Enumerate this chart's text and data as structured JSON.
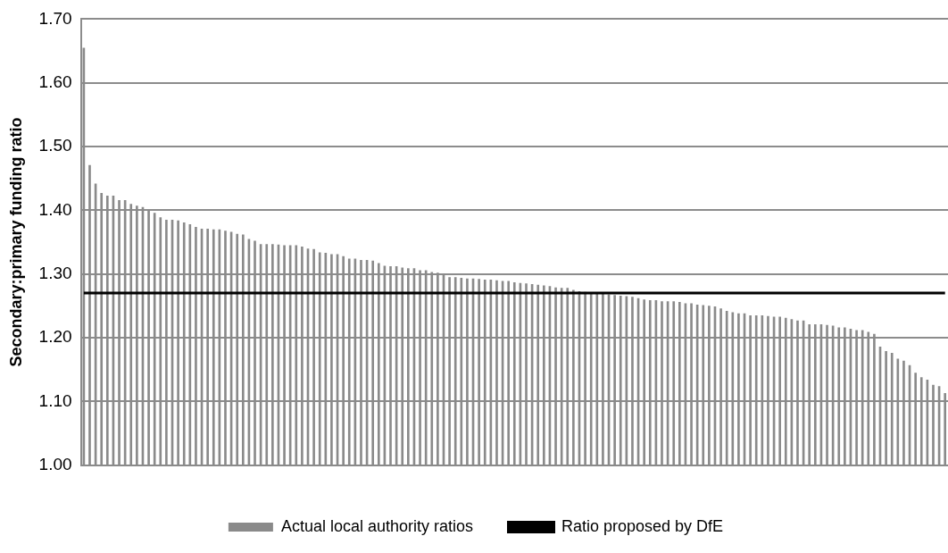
{
  "chart_data": {
    "type": "bar",
    "ylabel": "Secondary:primary funding ratio",
    "categories": [
      null,
      null,
      null,
      null,
      null,
      null,
      null,
      null,
      null,
      null,
      null,
      null,
      null,
      null,
      null,
      null,
      null,
      null,
      null,
      null,
      null,
      null,
      null,
      null,
      null,
      null,
      null,
      null,
      null,
      null,
      null,
      null,
      null,
      null,
      null,
      null,
      null,
      null,
      null,
      null,
      null,
      null,
      null,
      null,
      null,
      null,
      null,
      null,
      null,
      null,
      null,
      null,
      null,
      null,
      null,
      null,
      null,
      null,
      null,
      null,
      null,
      null,
      null,
      null,
      null,
      null,
      null,
      null,
      null,
      null,
      null,
      null,
      null,
      null,
      null,
      null,
      null,
      null,
      null,
      null,
      null,
      null,
      null,
      null,
      null,
      null,
      null,
      null,
      null,
      null,
      null,
      null,
      null,
      null,
      null,
      null,
      null,
      null,
      null,
      null,
      null,
      null,
      null,
      null,
      null,
      null,
      null,
      null,
      null,
      null,
      null,
      null,
      null,
      null,
      null,
      null,
      null,
      null,
      null,
      null,
      null,
      null,
      null,
      null,
      null,
      null,
      null,
      null,
      null,
      null,
      null,
      null,
      null,
      null,
      null,
      null,
      null,
      null,
      null,
      null,
      null,
      null,
      null,
      null,
      null,
      null,
      null
    ],
    "series": [
      {
        "name": "Actual local authority ratios",
        "color": "#8a8a8a",
        "values": [
          1.655,
          1.471,
          1.442,
          1.427,
          1.423,
          1.423,
          1.416,
          1.416,
          1.41,
          1.407,
          1.405,
          1.4,
          1.396,
          1.389,
          1.385,
          1.385,
          1.384,
          1.381,
          1.378,
          1.374,
          1.371,
          1.371,
          1.37,
          1.37,
          1.368,
          1.366,
          1.363,
          1.362,
          1.355,
          1.352,
          1.347,
          1.347,
          1.347,
          1.346,
          1.345,
          1.345,
          1.345,
          1.343,
          1.34,
          1.339,
          1.334,
          1.333,
          1.331,
          1.331,
          1.328,
          1.324,
          1.324,
          1.322,
          1.322,
          1.321,
          1.317,
          1.313,
          1.312,
          1.312,
          1.31,
          1.309,
          1.309,
          1.306,
          1.306,
          1.303,
          1.302,
          1.301,
          1.295,
          1.295,
          1.294,
          1.293,
          1.293,
          1.292,
          1.291,
          1.291,
          1.29,
          1.289,
          1.289,
          1.287,
          1.286,
          1.285,
          1.284,
          1.283,
          1.282,
          1.281,
          1.279,
          1.278,
          1.278,
          1.275,
          1.273,
          1.272,
          1.271,
          1.27,
          1.269,
          1.268,
          1.267,
          1.266,
          1.265,
          1.264,
          1.262,
          1.26,
          1.259,
          1.259,
          1.257,
          1.257,
          1.257,
          1.256,
          1.254,
          1.254,
          1.252,
          1.251,
          1.25,
          1.249,
          1.246,
          1.242,
          1.24,
          1.238,
          1.238,
          1.235,
          1.235,
          1.235,
          1.234,
          1.233,
          1.233,
          1.231,
          1.229,
          1.227,
          1.227,
          1.221,
          1.221,
          1.221,
          1.22,
          1.219,
          1.216,
          1.216,
          1.214,
          1.212,
          1.212,
          1.209,
          1.206,
          1.186,
          1.179,
          1.176,
          1.167,
          1.164,
          1.157,
          1.145,
          1.138,
          1.134,
          1.126,
          1.124,
          1.113
        ]
      },
      {
        "name": "Ratio proposed by DfE",
        "type": "line",
        "color": "#000000",
        "values": [
          1.27,
          1.27,
          1.27,
          1.27,
          1.27,
          1.27,
          1.27,
          1.27,
          1.27,
          1.27,
          1.27,
          1.27,
          1.27,
          1.27,
          1.27,
          1.27,
          1.27,
          1.27,
          1.27,
          1.27,
          1.27,
          1.27,
          1.27,
          1.27,
          1.27,
          1.27,
          1.27,
          1.27,
          1.27,
          1.27,
          1.27,
          1.27,
          1.27,
          1.27,
          1.27,
          1.27,
          1.27,
          1.27,
          1.27,
          1.27,
          1.27,
          1.27,
          1.27,
          1.27,
          1.27,
          1.27,
          1.27,
          1.27,
          1.27,
          1.27,
          1.27,
          1.27,
          1.27,
          1.27,
          1.27,
          1.27,
          1.27,
          1.27,
          1.27,
          1.27,
          1.27,
          1.27,
          1.27,
          1.27,
          1.27,
          1.27,
          1.27,
          1.27,
          1.27,
          1.27,
          1.27,
          1.27,
          1.27,
          1.27,
          1.27,
          1.27,
          1.27,
          1.27,
          1.27,
          1.27,
          1.27,
          1.27,
          1.27,
          1.27,
          1.27,
          1.27,
          1.27,
          1.27,
          1.27,
          1.27,
          1.27,
          1.27,
          1.27,
          1.27,
          1.27,
          1.27,
          1.27,
          1.27,
          1.27,
          1.27,
          1.27,
          1.27,
          1.27,
          1.27,
          1.27,
          1.27,
          1.27,
          1.27,
          1.27,
          1.27,
          1.27,
          1.27,
          1.27,
          1.27,
          1.27,
          1.27,
          1.27,
          1.27,
          1.27,
          1.27,
          1.27,
          1.27,
          1.27,
          1.27,
          1.27,
          1.27,
          1.27,
          1.27,
          1.27,
          1.27,
          1.27,
          1.27,
          1.27,
          1.27,
          1.27,
          1.27,
          1.27,
          1.27,
          1.27,
          1.27,
          1.27,
          1.27,
          1.27,
          1.27,
          1.27,
          1.27,
          1.27
        ]
      }
    ],
    "ylim": [
      1.0,
      1.7
    ],
    "yticks": [
      {
        "value": 1.0,
        "label": "1.00"
      },
      {
        "value": 1.1,
        "label": "1.10"
      },
      {
        "value": 1.2,
        "label": "1.20"
      },
      {
        "value": 1.3,
        "label": "1.30"
      },
      {
        "value": 1.4,
        "label": "1.40"
      },
      {
        "value": 1.5,
        "label": "1.50"
      },
      {
        "value": 1.6,
        "label": "1.60"
      },
      {
        "value": 1.7,
        "label": "1.70"
      }
    ],
    "grid": "y",
    "legend": "bottom",
    "marker": "none",
    "line_style": "solid"
  }
}
